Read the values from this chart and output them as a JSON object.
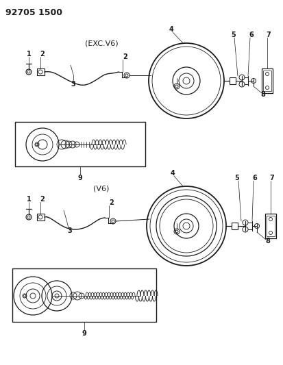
{
  "title": "92705 1500",
  "bg_color": "#ffffff",
  "line_color": "#1a1a1a",
  "diagram1_label": "(EXC.V6)",
  "diagram2_label": "(V6)",
  "font_size_title": 9,
  "font_size_label": 8,
  "font_size_part": 7
}
